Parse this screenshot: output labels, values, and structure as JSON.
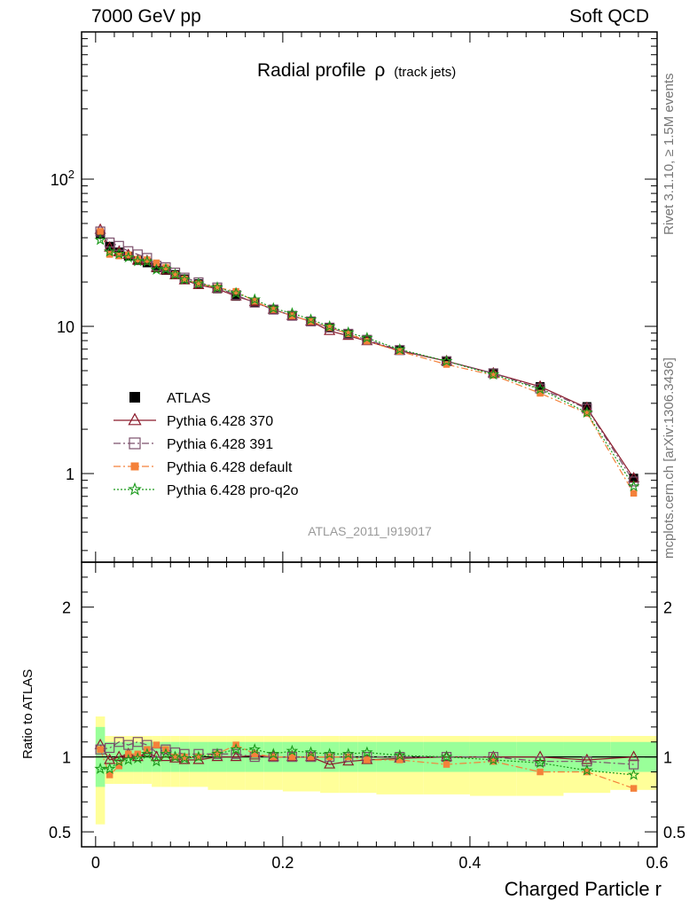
{
  "header": {
    "left": "7000 GeV pp",
    "right": "Soft QCD"
  },
  "side_labels": {
    "rivet": "Rivet 3.1.10, ≥ 1.5M events",
    "mcplots": "mcplots.cern.ch [arXiv:1306.3436]"
  },
  "chart_data": {
    "type": "scatter",
    "title": "Radial profile",
    "title_symbol": "ρ",
    "title_suffix": "(track jets)",
    "analysis_id": "ATLAS_2011_I919017",
    "xlabel": "Charged Particle r",
    "ylabel_ratio": "Ratio to ATLAS",
    "xlim": [
      -0.015,
      0.6
    ],
    "xticks": [
      "0",
      "0.2",
      "0.4",
      "0.6"
    ],
    "xtick_values": [
      0,
      0.2,
      0.4,
      0.6
    ],
    "main": {
      "yscale": "log",
      "ylim": [
        0.25,
        1000
      ],
      "yticks": [
        "1",
        "10",
        "10²"
      ],
      "ytick_values": [
        1,
        10,
        100
      ]
    },
    "ratio": {
      "ylim": [
        0.4,
        2.3
      ],
      "yticks": [
        "0.5",
        "1",
        "2"
      ],
      "ytick_values": [
        0.5,
        1,
        2
      ]
    },
    "legend_position": "lower-left",
    "x": [
      0.005,
      0.015,
      0.025,
      0.035,
      0.045,
      0.055,
      0.065,
      0.075,
      0.085,
      0.095,
      0.11,
      0.13,
      0.15,
      0.17,
      0.19,
      0.21,
      0.23,
      0.25,
      0.27,
      0.29,
      0.325,
      0.375,
      0.425,
      0.475,
      0.525,
      0.575
    ],
    "bin_edges": [
      0,
      0.01,
      0.02,
      0.03,
      0.04,
      0.05,
      0.06,
      0.07,
      0.08,
      0.09,
      0.1,
      0.12,
      0.14,
      0.16,
      0.18,
      0.2,
      0.22,
      0.24,
      0.26,
      0.28,
      0.3,
      0.35,
      0.4,
      0.45,
      0.5,
      0.55,
      0.6
    ],
    "series": [
      {
        "name": "ATLAS",
        "color": "#000000",
        "marker": "filled-square",
        "line": "none",
        "values": [
          42,
          35,
          32,
          30,
          28,
          27,
          25,
          24,
          22.5,
          21,
          19.5,
          18,
          16,
          14.5,
          13,
          11.8,
          10.8,
          9.8,
          8.9,
          8.1,
          6.9,
          5.8,
          4.8,
          3.9,
          2.85,
          0.93
        ]
      },
      {
        "name": "Pythia 6.428 370",
        "color": "#8b1a2b",
        "marker": "open-triangle",
        "line": "solid",
        "ratio": [
          1.08,
          0.98,
          1.0,
          1.02,
          1.0,
          1.03,
          1.0,
          1.0,
          0.99,
          0.98,
          0.98,
          1.0,
          1.0,
          1.01,
          1.0,
          1.0,
          1.0,
          0.95,
          0.97,
          0.98,
          0.99,
          1.0,
          1.0,
          1.0,
          0.98,
          1.0
        ]
      },
      {
        "name": "Pythia 6.428 391",
        "color": "#7b4f6b",
        "marker": "open-square",
        "line": "dashdot",
        "ratio": [
          1.05,
          1.06,
          1.1,
          1.08,
          1.1,
          1.08,
          1.03,
          1.05,
          1.03,
          1.02,
          1.02,
          1.02,
          1.02,
          1.0,
          1.0,
          1.0,
          1.0,
          1.0,
          1.0,
          1.0,
          1.0,
          1.0,
          1.0,
          0.97,
          0.97,
          0.95
        ]
      },
      {
        "name": "Pythia 6.428 default",
        "color": "#f4813a",
        "marker": "filled-square-small",
        "line": "dashdot",
        "ratio": [
          1.05,
          0.88,
          0.94,
          1.02,
          1.02,
          1.05,
          1.08,
          1.05,
          1.0,
          1.0,
          1.0,
          1.02,
          1.08,
          1.02,
          1.0,
          1.0,
          1.0,
          1.0,
          1.0,
          0.98,
          0.98,
          0.95,
          0.97,
          0.9,
          0.9,
          0.79
        ]
      },
      {
        "name": "Pythia 6.428 pro-q2o",
        "color": "#1b9a1b",
        "marker": "open-star",
        "line": "dotted",
        "ratio": [
          0.92,
          0.92,
          0.97,
          0.98,
          0.99,
          1.02,
          0.97,
          1.02,
          1.0,
          0.99,
          1.0,
          1.02,
          1.05,
          1.05,
          1.02,
          1.04,
          1.03,
          1.02,
          1.02,
          1.03,
          1.01,
          1.0,
          0.98,
          0.96,
          0.91,
          0.88
        ]
      }
    ],
    "uncertainty_band": {
      "stat_color": "#99ff99",
      "total_color": "#ffff99",
      "stat_lo": [
        0.8,
        0.9,
        0.9,
        0.9,
        0.9,
        0.9,
        0.9,
        0.9,
        0.9,
        0.9,
        0.9,
        0.9,
        0.9,
        0.9,
        0.9,
        0.9,
        0.9,
        0.9,
        0.9,
        0.9,
        0.9,
        0.9,
        0.9,
        0.9,
        0.9,
        0.9
      ],
      "stat_hi": [
        1.2,
        1.1,
        1.1,
        1.1,
        1.1,
        1.1,
        1.1,
        1.1,
        1.1,
        1.1,
        1.1,
        1.1,
        1.1,
        1.1,
        1.1,
        1.1,
        1.1,
        1.1,
        1.1,
        1.1,
        1.1,
        1.1,
        1.1,
        1.1,
        1.1,
        1.1
      ],
      "total_lo": [
        0.55,
        0.82,
        0.82,
        0.82,
        0.82,
        0.82,
        0.8,
        0.8,
        0.8,
        0.8,
        0.8,
        0.78,
        0.78,
        0.78,
        0.78,
        0.77,
        0.77,
        0.76,
        0.76,
        0.76,
        0.75,
        0.75,
        0.74,
        0.74,
        0.76,
        0.78
      ],
      "total_hi": [
        1.27,
        1.14,
        1.14,
        1.14,
        1.14,
        1.14,
        1.14,
        1.14,
        1.14,
        1.14,
        1.14,
        1.14,
        1.14,
        1.14,
        1.14,
        1.14,
        1.14,
        1.14,
        1.14,
        1.14,
        1.14,
        1.14,
        1.14,
        1.14,
        1.14,
        1.14
      ]
    }
  }
}
